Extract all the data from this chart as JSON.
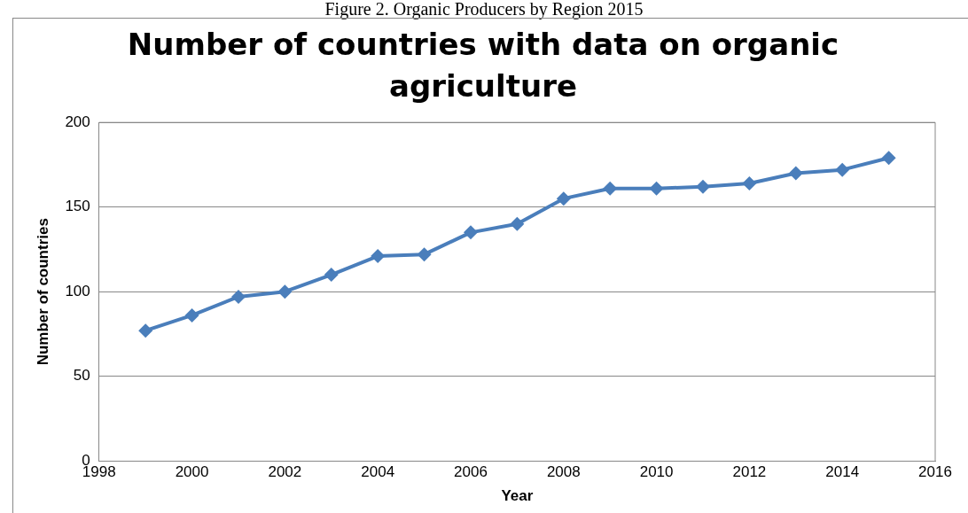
{
  "chart_data": {
    "type": "line",
    "title": "Number of countries with data on organic agriculture",
    "xlabel": "Year",
    "ylabel": "Number of countries",
    "annotations": [
      "Figure 2. Organic Producers by Region 2015"
    ],
    "x": [
      1999,
      2000,
      2001,
      2002,
      2003,
      2004,
      2005,
      2006,
      2007,
      2008,
      2009,
      2010,
      2011,
      2012,
      2013,
      2014,
      2015
    ],
    "series": [
      {
        "color": "#4a7ebb",
        "values": [
          77,
          86,
          97,
          100,
          110,
          121,
          122,
          135,
          140,
          155,
          161,
          161,
          162,
          164,
          170,
          172,
          179
        ]
      }
    ],
    "xlim": [
      1998,
      2016
    ],
    "xticks": [
      1998,
      2000,
      2002,
      2004,
      2006,
      2008,
      2010,
      2012,
      2014,
      2016
    ],
    "ylim": [
      0,
      200
    ],
    "yticks": [
      0,
      50,
      100,
      150,
      200
    ],
    "grid": "y",
    "legend": false,
    "marker": "diamond",
    "line_style": "solid"
  }
}
